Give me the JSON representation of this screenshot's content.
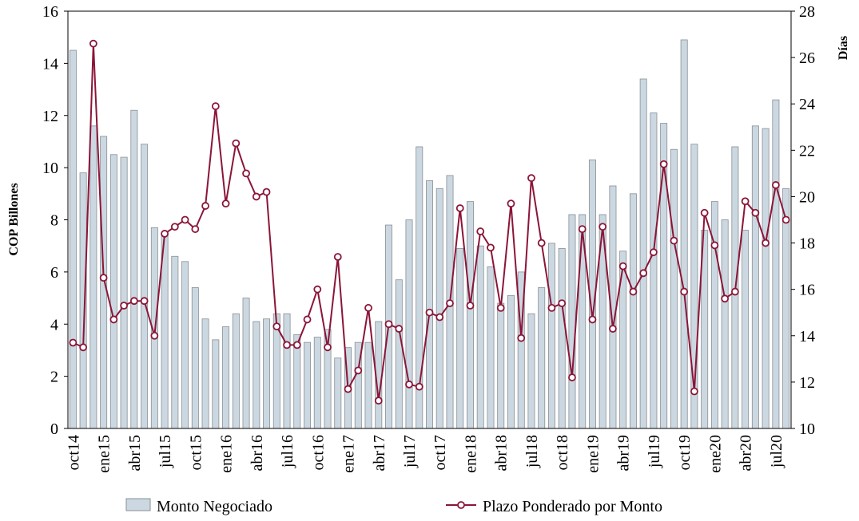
{
  "chart_data": {
    "type": "bar_line",
    "ylabel": "COP Billones",
    "y2label": "Días",
    "categories": [
      "oct14",
      null,
      null,
      "ene15",
      null,
      null,
      "abr15",
      null,
      null,
      "jul15",
      null,
      null,
      "oct15",
      null,
      null,
      "ene16",
      null,
      null,
      "abr16",
      null,
      null,
      "jul16",
      null,
      null,
      "oct16",
      null,
      null,
      "ene17",
      null,
      null,
      "abr17",
      null,
      null,
      "jul17",
      null,
      null,
      "oct17",
      null,
      null,
      "ene18",
      null,
      null,
      "abr18",
      null,
      null,
      "jul18",
      null,
      null,
      "oct18",
      null,
      null,
      "ene19",
      null,
      null,
      "abr19",
      null,
      null,
      "jul19",
      null,
      null,
      "oct19",
      null,
      null,
      "ene20",
      null,
      null,
      "abr20",
      null,
      null,
      "jul20",
      null
    ],
    "series": [
      {
        "name": "Monto Negociado",
        "type": "bar",
        "color": "#cbd8e1",
        "values": [
          14.5,
          9.8,
          11.6,
          11.2,
          10.5,
          10.4,
          12.2,
          10.9,
          7.7,
          7.5,
          6.6,
          6.4,
          5.4,
          4.2,
          3.4,
          3.9,
          4.4,
          5.0,
          4.1,
          4.2,
          4.4,
          4.4,
          3.6,
          3.3,
          3.5,
          3.8,
          2.7,
          3.1,
          3.3,
          3.3,
          4.1,
          7.8,
          5.7,
          8.0,
          10.8,
          9.5,
          9.2,
          9.7,
          6.9,
          8.7,
          7.0,
          6.2,
          4.8,
          5.1,
          6.0,
          4.4,
          5.4,
          7.1,
          6.9,
          8.2,
          8.2,
          10.3,
          8.2,
          9.3,
          6.8,
          9.0,
          13.4,
          12.1,
          11.7,
          10.7,
          14.9,
          10.9,
          7.6,
          8.7,
          8.0,
          10.8,
          7.6,
          11.6,
          11.5,
          12.6,
          9.2
        ]
      },
      {
        "name": "Plazo Ponderado por Monto",
        "type": "line",
        "axis": "y2",
        "color": "#8b1538",
        "values": [
          13.7,
          13.5,
          26.6,
          16.5,
          14.7,
          15.3,
          15.5,
          15.5,
          14.0,
          18.4,
          18.7,
          19.0,
          18.6,
          19.6,
          23.9,
          19.7,
          22.3,
          21.0,
          20.0,
          20.2,
          14.4,
          13.6,
          13.6,
          14.7,
          16.0,
          13.5,
          17.4,
          11.7,
          12.5,
          15.2,
          11.2,
          14.5,
          14.3,
          11.9,
          11.8,
          15.0,
          14.8,
          15.4,
          19.5,
          15.3,
          18.5,
          17.8,
          15.2,
          19.7,
          13.9,
          20.8,
          18.0,
          15.2,
          15.4,
          12.2,
          18.6,
          14.7,
          18.7,
          14.3,
          17.0,
          15.9,
          16.7,
          17.6,
          21.4,
          18.1,
          15.9,
          11.6,
          19.3,
          17.9,
          15.6,
          15.9,
          19.8,
          19.3,
          18.0,
          20.5,
          19.0
        ]
      }
    ],
    "ylim": [
      0,
      16
    ],
    "yticks": [
      0,
      2,
      4,
      6,
      8,
      10,
      12,
      14,
      16
    ],
    "y2lim": [
      10,
      28
    ],
    "y2ticks": [
      10,
      12,
      14,
      16,
      18,
      20,
      22,
      24,
      26,
      28
    ]
  }
}
